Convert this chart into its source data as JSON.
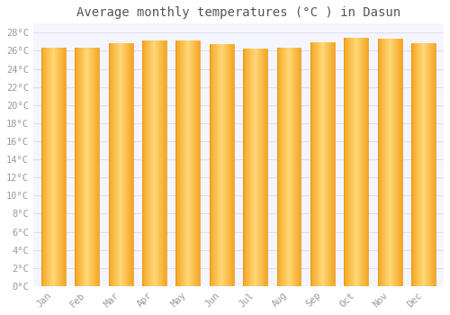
{
  "title": "Average monthly temperatures (°C ) in Dasun",
  "months": [
    "Jan",
    "Feb",
    "Mar",
    "Apr",
    "May",
    "Jun",
    "Jul",
    "Aug",
    "Sep",
    "Oct",
    "Nov",
    "Dec"
  ],
  "values": [
    26.3,
    26.3,
    26.8,
    27.1,
    27.1,
    26.7,
    26.2,
    26.3,
    26.9,
    27.4,
    27.3,
    26.8
  ],
  "bar_color_left": "#F5A623",
  "bar_color_center": "#FFD060",
  "bar_color_right": "#F5A623",
  "background_color": "#FFFFFF",
  "plot_bg_color": "#F5F5FF",
  "grid_color": "#DDDDEE",
  "ytick_labels": [
    "0°C",
    "2°C",
    "4°C",
    "6°C",
    "8°C",
    "10°C",
    "12°C",
    "14°C",
    "16°C",
    "18°C",
    "20°C",
    "22°C",
    "24°C",
    "26°C",
    "28°C"
  ],
  "ytick_values": [
    0,
    2,
    4,
    6,
    8,
    10,
    12,
    14,
    16,
    18,
    20,
    22,
    24,
    26,
    28
  ],
  "ylim": [
    0,
    29
  ],
  "title_fontsize": 10,
  "tick_fontsize": 7.5,
  "figsize": [
    5.0,
    3.5
  ],
  "dpi": 100
}
